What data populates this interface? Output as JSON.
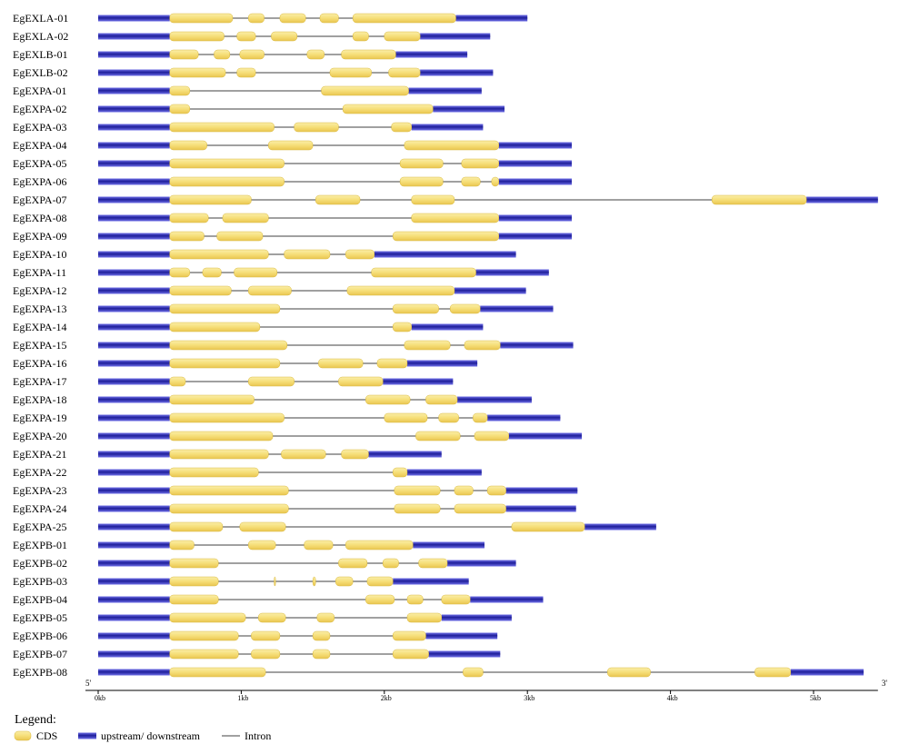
{
  "colors": {
    "cds": "#f6de78",
    "cds_stroke": "#d8b840",
    "utr_dark": "#1e1e9a",
    "utr_light": "#6f6fe8",
    "intron": "#808080",
    "axis": "#000000"
  },
  "chart_data": {
    "type": "gene-structure",
    "axis": {
      "unit": "kb",
      "range": [
        0,
        5.45
      ],
      "ticks": [
        {
          "value": 0,
          "label": "0kb"
        },
        {
          "value": 1,
          "label": "1kb"
        },
        {
          "value": 2,
          "label": "2kb"
        },
        {
          "value": 3,
          "label": "3kb"
        },
        {
          "value": 4,
          "label": "4kb"
        },
        {
          "value": 5,
          "label": "5kb"
        }
      ],
      "start_label": "5'",
      "end_label": "3'"
    },
    "genes": [
      {
        "name": "EgEXLA-01",
        "end": 3.0,
        "cds": [
          [
            0.5,
            0.94
          ],
          [
            1.05,
            1.16
          ],
          [
            1.27,
            1.45
          ],
          [
            1.55,
            1.68
          ],
          [
            1.78,
            2.5
          ]
        ]
      },
      {
        "name": "EgEXLA-02",
        "end": 2.74,
        "cds": [
          [
            0.5,
            0.88
          ],
          [
            0.97,
            1.1
          ],
          [
            1.21,
            1.39
          ],
          [
            1.78,
            1.89
          ],
          [
            2.0,
            2.25
          ]
        ]
      },
      {
        "name": "EgEXLB-01",
        "end": 2.58,
        "cds": [
          [
            0.5,
            0.7
          ],
          [
            0.81,
            0.92
          ],
          [
            0.99,
            1.16
          ],
          [
            1.46,
            1.58
          ],
          [
            1.7,
            2.08
          ]
        ]
      },
      {
        "name": "EgEXLB-02",
        "end": 2.76,
        "cds": [
          [
            0.5,
            0.89
          ],
          [
            0.97,
            1.1
          ],
          [
            1.62,
            1.91
          ],
          [
            2.03,
            2.25
          ]
        ]
      },
      {
        "name": "EgEXPA-01",
        "end": 2.68,
        "cds": [
          [
            0.5,
            0.64
          ],
          [
            1.56,
            2.17
          ]
        ]
      },
      {
        "name": "EgEXPA-02",
        "end": 2.84,
        "cds": [
          [
            0.5,
            0.64
          ],
          [
            1.71,
            2.34
          ]
        ]
      },
      {
        "name": "EgEXPA-03",
        "end": 2.69,
        "cds": [
          [
            0.5,
            1.23
          ],
          [
            1.37,
            1.68
          ],
          [
            2.05,
            2.19
          ]
        ]
      },
      {
        "name": "EgEXPA-04",
        "end": 3.31,
        "cds": [
          [
            0.5,
            0.76
          ],
          [
            1.19,
            1.5
          ],
          [
            2.14,
            2.8
          ]
        ]
      },
      {
        "name": "EgEXPA-05",
        "end": 3.31,
        "cds": [
          [
            0.5,
            1.3
          ],
          [
            2.11,
            2.41
          ],
          [
            2.54,
            2.8
          ]
        ]
      },
      {
        "name": "EgEXPA-06",
        "end": 3.31,
        "cds": [
          [
            0.5,
            1.3
          ],
          [
            2.11,
            2.41
          ],
          [
            2.54,
            2.67
          ],
          [
            2.75,
            2.8
          ]
        ]
      },
      {
        "name": "EgEXPA-07",
        "end": 5.45,
        "cds": [
          [
            0.5,
            1.07
          ],
          [
            1.52,
            1.83
          ],
          [
            2.19,
            2.49
          ],
          [
            4.29,
            4.95
          ]
        ]
      },
      {
        "name": "EgEXPA-08",
        "end": 3.31,
        "cds": [
          [
            0.5,
            0.77
          ],
          [
            0.87,
            1.19
          ],
          [
            2.19,
            2.8
          ]
        ]
      },
      {
        "name": "EgEXPA-09",
        "end": 3.31,
        "cds": [
          [
            0.5,
            0.74
          ],
          [
            0.83,
            1.15
          ],
          [
            2.06,
            2.8
          ]
        ]
      },
      {
        "name": "EgEXPA-10",
        "end": 2.92,
        "cds": [
          [
            0.5,
            1.19
          ],
          [
            1.3,
            1.62
          ],
          [
            1.73,
            1.93
          ]
        ]
      },
      {
        "name": "EgEXPA-11",
        "end": 3.15,
        "cds": [
          [
            0.5,
            0.64
          ],
          [
            0.73,
            0.86
          ],
          [
            0.95,
            1.25
          ],
          [
            1.91,
            2.64
          ]
        ]
      },
      {
        "name": "EgEXPA-12",
        "end": 2.99,
        "cds": [
          [
            0.5,
            0.93
          ],
          [
            1.05,
            1.35
          ],
          [
            1.74,
            2.49
          ]
        ]
      },
      {
        "name": "EgEXPA-13",
        "end": 3.18,
        "cds": [
          [
            0.5,
            1.27
          ],
          [
            2.06,
            2.38
          ],
          [
            2.46,
            2.67
          ]
        ]
      },
      {
        "name": "EgEXPA-14",
        "end": 2.69,
        "cds": [
          [
            0.5,
            1.13
          ],
          [
            2.06,
            2.19
          ]
        ]
      },
      {
        "name": "EgEXPA-15",
        "end": 3.32,
        "cds": [
          [
            0.5,
            1.32
          ],
          [
            2.14,
            2.46
          ],
          [
            2.56,
            2.81
          ]
        ]
      },
      {
        "name": "EgEXPA-16",
        "end": 2.65,
        "cds": [
          [
            0.5,
            1.27
          ],
          [
            1.54,
            1.85
          ],
          [
            1.95,
            2.16
          ]
        ]
      },
      {
        "name": "EgEXPA-17",
        "end": 2.48,
        "cds": [
          [
            0.5,
            0.61
          ],
          [
            1.05,
            1.37
          ],
          [
            1.68,
            1.99
          ]
        ]
      },
      {
        "name": "EgEXPA-18",
        "end": 3.03,
        "cds": [
          [
            0.5,
            1.09
          ],
          [
            1.87,
            2.18
          ],
          [
            2.29,
            2.51
          ]
        ]
      },
      {
        "name": "EgEXPA-19",
        "end": 3.23,
        "cds": [
          [
            0.5,
            1.3
          ],
          [
            2.0,
            2.3
          ],
          [
            2.38,
            2.52
          ],
          [
            2.62,
            2.72
          ]
        ]
      },
      {
        "name": "EgEXPA-20",
        "end": 3.38,
        "cds": [
          [
            0.5,
            1.22
          ],
          [
            2.22,
            2.53
          ],
          [
            2.63,
            2.87
          ]
        ]
      },
      {
        "name": "EgEXPA-21",
        "end": 2.4,
        "cds": [
          [
            0.5,
            1.19
          ],
          [
            1.28,
            1.59
          ],
          [
            1.7,
            1.89
          ]
        ]
      },
      {
        "name": "EgEXPA-22",
        "end": 2.68,
        "cds": [
          [
            0.5,
            1.12
          ],
          [
            2.06,
            2.16
          ]
        ]
      },
      {
        "name": "EgEXPA-23",
        "end": 3.35,
        "cds": [
          [
            0.5,
            1.33
          ],
          [
            2.07,
            2.39
          ],
          [
            2.49,
            2.62
          ],
          [
            2.72,
            2.85
          ]
        ]
      },
      {
        "name": "EgEXPA-24",
        "end": 3.34,
        "cds": [
          [
            0.5,
            1.33
          ],
          [
            2.07,
            2.39
          ],
          [
            2.49,
            2.85
          ]
        ]
      },
      {
        "name": "EgEXPA-25",
        "end": 3.9,
        "cds": [
          [
            0.5,
            0.87
          ],
          [
            0.99,
            1.31
          ],
          [
            2.89,
            3.4
          ]
        ]
      },
      {
        "name": "EgEXPB-01",
        "end": 2.7,
        "cds": [
          [
            0.5,
            0.67
          ],
          [
            1.05,
            1.24
          ],
          [
            1.44,
            1.64
          ],
          [
            1.73,
            2.2
          ]
        ]
      },
      {
        "name": "EgEXPB-02",
        "end": 2.92,
        "cds": [
          [
            0.5,
            0.84
          ],
          [
            1.68,
            1.88
          ],
          [
            1.99,
            2.1
          ],
          [
            2.24,
            2.44
          ]
        ]
      },
      {
        "name": "EgEXPB-03",
        "end": 2.59,
        "cds": [
          [
            0.5,
            0.84
          ],
          [
            1.23,
            1.24
          ],
          [
            1.5,
            1.52
          ],
          [
            1.66,
            1.78
          ],
          [
            1.88,
            2.06
          ]
        ]
      },
      {
        "name": "EgEXPB-04",
        "end": 3.11,
        "cds": [
          [
            0.5,
            0.84
          ],
          [
            1.87,
            2.07
          ],
          [
            2.16,
            2.27
          ],
          [
            2.4,
            2.6
          ]
        ]
      },
      {
        "name": "EgEXPB-05",
        "end": 2.89,
        "cds": [
          [
            0.5,
            1.03
          ],
          [
            1.12,
            1.31
          ],
          [
            1.53,
            1.65
          ],
          [
            2.16,
            2.4
          ]
        ]
      },
      {
        "name": "EgEXPB-06",
        "end": 2.79,
        "cds": [
          [
            0.5,
            0.98
          ],
          [
            1.07,
            1.27
          ],
          [
            1.5,
            1.62
          ],
          [
            2.06,
            2.29
          ]
        ]
      },
      {
        "name": "EgEXPB-07",
        "end": 2.81,
        "cds": [
          [
            0.5,
            0.98
          ],
          [
            1.07,
            1.27
          ],
          [
            1.5,
            1.62
          ],
          [
            2.06,
            2.31
          ]
        ]
      },
      {
        "name": "EgEXPB-08",
        "end": 5.35,
        "cds": [
          [
            0.5,
            1.17
          ],
          [
            2.55,
            2.69
          ],
          [
            3.56,
            3.86
          ],
          [
            4.59,
            4.84
          ]
        ]
      }
    ]
  },
  "legend": {
    "title": "Legend:",
    "items": [
      {
        "key": "cds",
        "label": "CDS"
      },
      {
        "key": "utr",
        "label": "upstream/ downstream"
      },
      {
        "key": "intron",
        "label": "Intron"
      }
    ]
  }
}
